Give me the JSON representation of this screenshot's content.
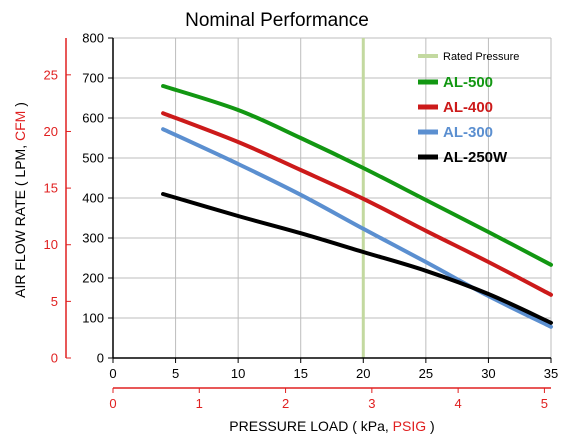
{
  "chart_data": {
    "type": "line",
    "title": "Nominal Performance",
    "x": {
      "label_parts": [
        "PRESSURE LOAD ( kPa, ",
        "PSIG",
        " )"
      ],
      "kpa_range": [
        0,
        35
      ],
      "kpa_ticks": [
        0,
        5,
        10,
        15,
        20,
        25,
        30,
        35
      ],
      "psig_ticks": [
        0,
        1,
        2,
        3,
        4,
        5
      ],
      "kpa_per_psig": 6.89476
    },
    "y": {
      "label_parts": [
        "AIR FLOW RATE ( LPM, ",
        "CFM",
        " )"
      ],
      "lpm_range": [
        0,
        800
      ],
      "lpm_ticks": [
        0,
        100,
        200,
        300,
        400,
        500,
        600,
        700,
        800
      ],
      "cfm_ticks": [
        0,
        5,
        10,
        15,
        20,
        25
      ],
      "lpm_per_cfm": 28.3168
    },
    "grid": true,
    "legend_position": "top-right",
    "rated_pressure": {
      "label": "Rated Pressure",
      "kpa": 20,
      "color": "#c3d9a0"
    },
    "series": [
      {
        "name": "AL-500",
        "color": "#129712",
        "kpa": [
          4,
          10,
          15,
          20,
          25,
          30,
          35
        ],
        "lpm": [
          680,
          620,
          550,
          475,
          395,
          315,
          233
        ]
      },
      {
        "name": "AL-400",
        "color": "#cc1a1a",
        "kpa": [
          4,
          10,
          15,
          20,
          25,
          30,
          35
        ],
        "lpm": [
          612,
          540,
          470,
          398,
          318,
          240,
          158
        ]
      },
      {
        "name": "AL-300",
        "color": "#5b8fd0",
        "kpa": [
          4,
          10,
          15,
          20,
          25,
          30,
          35
        ],
        "lpm": [
          572,
          485,
          408,
          323,
          240,
          155,
          78
        ]
      },
      {
        "name": "AL-250W",
        "color": "#000000",
        "kpa": [
          4,
          10,
          15,
          20,
          25,
          30,
          35
        ],
        "lpm": [
          410,
          355,
          312,
          265,
          218,
          160,
          88
        ]
      }
    ],
    "secondary_axis_color": "#e02020"
  }
}
